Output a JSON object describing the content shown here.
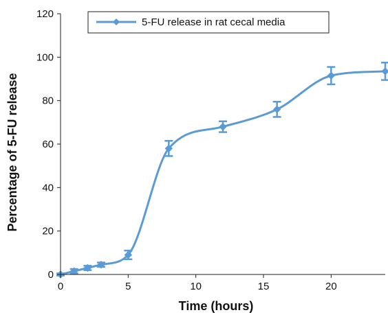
{
  "chart_data": {
    "type": "line",
    "title": "",
    "xlabel": "Time (hours)",
    "ylabel": "Percentage of 5-FU release",
    "xlim": [
      0,
      24
    ],
    "ylim": [
      0,
      120
    ],
    "xticks": [
      0,
      5,
      10,
      15,
      20
    ],
    "yticks": [
      0,
      20,
      40,
      60,
      80,
      100,
      120
    ],
    "grid": false,
    "legend_position": "top",
    "series": [
      {
        "name": "5-FU release in rat cecal media",
        "color": "#5b9bd5",
        "marker": "diamond",
        "smooth": true,
        "x": [
          0,
          1,
          2,
          3,
          5,
          8,
          12,
          16,
          20,
          24
        ],
        "y": [
          0,
          1.5,
          3,
          4.5,
          9,
          58,
          68,
          76,
          91.5,
          93.5
        ],
        "error": [
          0.5,
          1,
          1,
          1,
          2,
          3.5,
          2.5,
          3.5,
          4,
          4
        ]
      }
    ]
  }
}
